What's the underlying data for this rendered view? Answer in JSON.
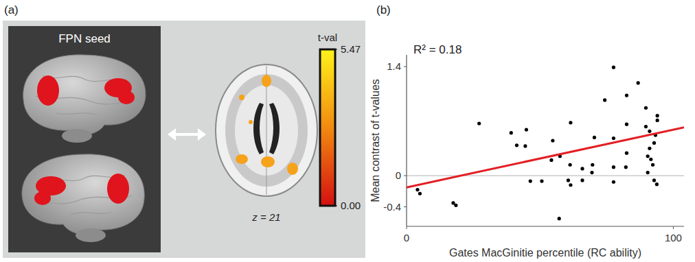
{
  "panel_a": {
    "panel_label": "(a)",
    "seed_label": "FPN seed",
    "slice_label": "z = 21",
    "colorbar": {
      "title": "t-val",
      "range": [
        0,
        5.47
      ],
      "ticks": [
        {
          "value": 0,
          "label": "0.00"
        },
        5.47
      ]
    }
  },
  "chart_data": {
    "panel_label": "(b)",
    "type": "scatter",
    "annotation": "R² = 0.18",
    "x_label": "Gates MacGinitie percentile (RC ability)",
    "y_label": "Mean contrast of t-values",
    "xlim": [
      0,
      104
    ],
    "ylim": [
      -0.65,
      1.55
    ],
    "xticks": [
      0,
      100
    ],
    "yticks": [
      -0.4,
      0,
      1.4
    ],
    "grid": false,
    "series": [
      {
        "type": "scatter",
        "color": "#000000",
        "marker": "circle",
        "x": [
          4.1,
          5.0,
          17.5,
          18.5,
          27.2,
          39.2,
          41.3,
          44.5,
          44.9,
          46.4,
          50.7,
          54.3,
          54.8,
          57.2,
          57.5,
          60.6,
          61.3,
          61.5,
          61.5,
          65.9,
          65.9,
          69.5,
          69.7,
          70.4,
          74.3,
          77.6,
          77.6,
          77.6,
          77.6,
          82.2,
          82.5,
          82.5,
          82.5,
          86.8,
          89.7,
          89.7,
          90.4,
          90.4,
          91.1,
          91.1,
          91.6,
          92.3,
          92.8,
          92.8,
          93.3,
          94.0,
          94.0,
          93.8
        ],
        "values": [
          -0.18,
          -0.23,
          -0.35,
          -0.38,
          0.67,
          0.55,
          0.39,
          0.38,
          0.59,
          -0.07,
          -0.07,
          0.2,
          0.45,
          -0.55,
          0.25,
          -0.06,
          0.14,
          -0.12,
          0.68,
          0.09,
          -0.06,
          0.04,
          0.14,
          0.49,
          0.97,
          0.11,
          -0.08,
          0.48,
          1.39,
          0.11,
          1.03,
          0.66,
          0.29,
          1.19,
          0.87,
          0.63,
          0.25,
          0.04,
          0.57,
          0.35,
          0.21,
          0.14,
          0.42,
          -0.06,
          0.52,
          0.77,
          0.71,
          -0.11
        ]
      },
      {
        "type": "line",
        "color": "#e31e24",
        "line_style": "solid",
        "x": [
          0,
          104
        ],
        "values": [
          -0.15,
          0.62
        ]
      }
    ]
  }
}
